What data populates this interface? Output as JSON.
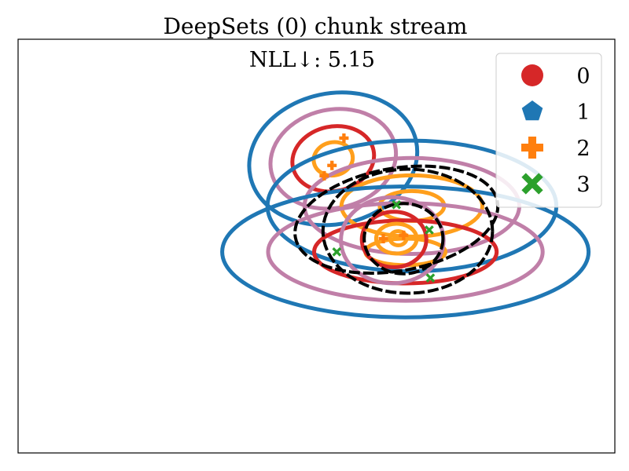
{
  "chart_data": {
    "type": "scatter",
    "title": "DeepSets (0) chunk stream",
    "annotation": "NLL↓: 5.15",
    "xlabel": "",
    "ylabel": "",
    "xlim": [
      0,
      100
    ],
    "ylim": [
      0,
      100
    ],
    "grid": false,
    "axis_ticks": false,
    "legend_placement": "top-right",
    "legend": [
      {
        "label": "0",
        "marker": "circle",
        "color": "#d62728"
      },
      {
        "label": "1",
        "marker": "pentagon",
        "color": "#1f77b4"
      },
      {
        "label": "2",
        "marker": "plus",
        "color": "#ff7f0e"
      },
      {
        "label": "3",
        "marker": "x",
        "color": "#2ca02c"
      }
    ],
    "series": [
      {
        "name": "0",
        "marker": "circle",
        "color": "#d62728",
        "points": []
      },
      {
        "name": "1",
        "marker": "pentagon",
        "color": "#1f77b4",
        "points": []
      },
      {
        "name": "2",
        "marker": "plus",
        "color": "#ff7f0e",
        "points": [
          {
            "x": 54.6,
            "y": 76.1
          },
          {
            "x": 52.6,
            "y": 69.5
          },
          {
            "x": 51.3,
            "y": 67.0
          },
          {
            "x": 61.2,
            "y": 51.8
          },
          {
            "x": 64.6,
            "y": 52.6
          }
        ]
      },
      {
        "name": "3",
        "marker": "x",
        "color": "#2ca02c",
        "points": [
          {
            "x": 53.4,
            "y": 48.6
          },
          {
            "x": 63.4,
            "y": 60.0
          },
          {
            "x": 68.9,
            "y": 53.9
          },
          {
            "x": 69.1,
            "y": 42.3
          }
        ]
      }
    ],
    "ellipses": [
      {
        "group": "A",
        "level": 3,
        "cx": 52.8,
        "cy": 71.1,
        "rx": 14.2,
        "ry": 15.8,
        "angle": -12,
        "color": "#1f77b4"
      },
      {
        "group": "A",
        "level": 2,
        "cx": 52.8,
        "cy": 71.1,
        "rx": 10.6,
        "ry": 11.9,
        "angle": -12,
        "color": "#c07fa8"
      },
      {
        "group": "A",
        "level": 1,
        "cx": 52.8,
        "cy": 71.1,
        "rx": 6.9,
        "ry": 7.8,
        "angle": -12,
        "color": "#d62728"
      },
      {
        "group": "A",
        "level": 0,
        "cx": 52.8,
        "cy": 71.1,
        "rx": 3.3,
        "ry": 4.0,
        "angle": -12,
        "color": "#ff9f1c"
      },
      {
        "group": "B",
        "level": 3,
        "cx": 66.0,
        "cy": 59.7,
        "rx": 24.2,
        "ry": 15.8,
        "angle": 0,
        "color": "#1f77b4"
      },
      {
        "group": "B",
        "level": 2,
        "cx": 66.0,
        "cy": 59.7,
        "rx": 18.0,
        "ry": 11.6,
        "angle": 0,
        "color": "#c07fa8"
      },
      {
        "group": "B",
        "level": 1,
        "cx": 66.0,
        "cy": 59.7,
        "rx": 11.8,
        "ry": 7.4,
        "angle": 0,
        "color": "#ff9f1c"
      },
      {
        "group": "B",
        "level": 0,
        "cx": 66.0,
        "cy": 59.7,
        "rx": 5.4,
        "ry": 3.6,
        "angle": 0,
        "color": "#ff9f1c"
      },
      {
        "group": "C",
        "level": 3,
        "cx": 64.9,
        "cy": 48.6,
        "rx": 30.7,
        "ry": 15.8,
        "angle": 0,
        "color": "#1f77b4"
      },
      {
        "group": "C",
        "level": 2,
        "cx": 64.9,
        "cy": 48.6,
        "rx": 23.0,
        "ry": 11.8,
        "angle": 0,
        "color": "#c07fa8"
      },
      {
        "group": "C",
        "level": 1,
        "cx": 64.9,
        "cy": 48.6,
        "rx": 15.3,
        "ry": 7.6,
        "angle": 0,
        "color": "#d62728"
      },
      {
        "group": "C",
        "level": 0,
        "cx": 64.9,
        "cy": 48.6,
        "rx": 6.7,
        "ry": 3.2,
        "angle": 0,
        "color": "#ff9f1c"
      },
      {
        "group": "D",
        "level": 3,
        "cx": 62.7,
        "cy": 51.4,
        "rx": 8.6,
        "ry": 10.4,
        "angle": 0,
        "color": "#c07fa8"
      },
      {
        "group": "D",
        "level": 2,
        "cx": 63.0,
        "cy": 51.6,
        "rx": 5.4,
        "ry": 6.7,
        "angle": 0,
        "color": "#d62728"
      },
      {
        "group": "D",
        "level": 1,
        "cx": 63.4,
        "cy": 51.8,
        "rx": 3.4,
        "ry": 3.6,
        "angle": 0,
        "color": "#ff9f1c"
      },
      {
        "group": "D",
        "level": 0,
        "cx": 63.7,
        "cy": 51.9,
        "rx": 1.4,
        "ry": 1.7,
        "angle": 0,
        "color": "#ff9f1c"
      },
      {
        "group": "E",
        "level": 3,
        "cx": 65.3,
        "cy": 53.6,
        "rx": 14.2,
        "ry": 15.0,
        "angle": 0,
        "color": "#000000",
        "dashed": true
      },
      {
        "group": "E",
        "level": 2,
        "cx": 63.4,
        "cy": 56.4,
        "rx": 17.2,
        "ry": 12.4,
        "angle": -10,
        "color": "#000000",
        "dashed": true
      },
      {
        "group": "E",
        "level": 1,
        "cx": 64.6,
        "cy": 51.8,
        "rx": 6.6,
        "ry": 8.5,
        "angle": 0,
        "color": "#000000",
        "dashed": true
      }
    ]
  }
}
